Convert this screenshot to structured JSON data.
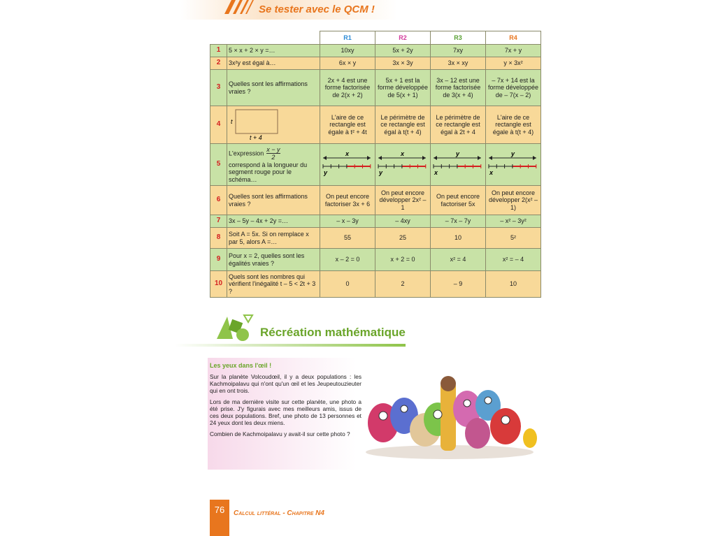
{
  "header": {
    "title": "Se tester avec le QCM !"
  },
  "table": {
    "headers": [
      "R1",
      "R2",
      "R3",
      "R4"
    ],
    "rows": [
      {
        "number": "1",
        "question": "5 × x + 2 × y =…",
        "answers": [
          "10xy",
          "5x + 2y",
          "7xy",
          "7x + y"
        ]
      },
      {
        "number": "2",
        "question": "3x²y est égal à…",
        "answers": [
          "6x × y",
          "3x × 3y",
          "3x × xy",
          "y × 3x²"
        ]
      },
      {
        "number": "3",
        "question": "Quelles sont les affirmations vraies ?",
        "answers": [
          "2x + 4 est une forme factorisée de 2(x + 2)",
          "5x + 1 est la forme développée de 5(x + 1)",
          "3x – 12 est une forme factorisée de 3(x + 4)",
          "– 7x + 14 est la forme développée de – 7(x – 2)"
        ]
      },
      {
        "number": "4",
        "question": {
          "side": "t",
          "base": "t + 4"
        },
        "answers": [
          "L'aire de ce rectangle est égale à t² + 4t",
          "Le périmètre de ce rectangle est égal à t(t + 4)",
          "Le périmètre de ce rectangle est égal à 2t + 4",
          "L'aire de ce rectangle est égale à t(t + 4)"
        ]
      },
      {
        "number": "5",
        "question": {
          "intro": "L'expression",
          "numerator": "x − y",
          "denominator": "2",
          "text": "correspond à la longueur du segment rouge pour le schéma…"
        },
        "answers": [
          {
            "top": "x",
            "bottom": "y"
          },
          {
            "top": "x",
            "bottom": "y"
          },
          {
            "top": "y",
            "bottom": "x"
          },
          {
            "top": "y",
            "bottom": "x"
          }
        ]
      },
      {
        "number": "6",
        "question": "Quelles sont les affirmations vraies ?",
        "answers": [
          "On peut encore factoriser 3x + 6",
          "On peut encore développer 2x² – 1",
          "On peut encore factoriser 5x",
          "On peut encore développer 2(x² – 1)"
        ]
      },
      {
        "number": "7",
        "question": "3x – 5y – 4x + 2y =…",
        "answers": [
          "– x – 3y",
          "– 4xy",
          "– 7x – 7y",
          "– x² – 3y²"
        ]
      },
      {
        "number": "8",
        "question": "Soit A = 5x. Si on remplace x par 5, alors A =…",
        "answers": [
          "55",
          "25",
          "10",
          "5²"
        ]
      },
      {
        "number": "9",
        "question": "Pour x = 2, quelles sont les égalités vraies ?",
        "answers": [
          "x – 2 = 0",
          "x + 2 = 0",
          "x² = 4",
          "x² = – 4"
        ]
      },
      {
        "number": "10",
        "question": "Quels sont les nombres qui vérifient l'inégalité t – 5 < 2t + 3 ?",
        "answers": [
          "0",
          "2",
          "– 9",
          "10"
        ]
      }
    ]
  },
  "recreation": {
    "title": "Récréation mathématique",
    "subtitle": "Les yeux dans l'œil !",
    "paragraphs": [
      "Sur la planète Volcoudœil, il y a deux populations : les Kachmoipalavu qui n'ont qu'un œil et les Jeupeutouzieuter qui en ont trois.",
      "Lors de ma dernière visite sur cette planète, une photo a été prise. J'y figurais avec mes meilleurs amis, issus de ces deux populations. Bref, une photo de 13 personnes et 24 yeux dont les deux miens.",
      "Combien de Kachmoipalavu y avait-il sur cette photo ?"
    ]
  },
  "footer": {
    "page": "76",
    "chapter": "Calcul littéral - Chapitre N4"
  }
}
